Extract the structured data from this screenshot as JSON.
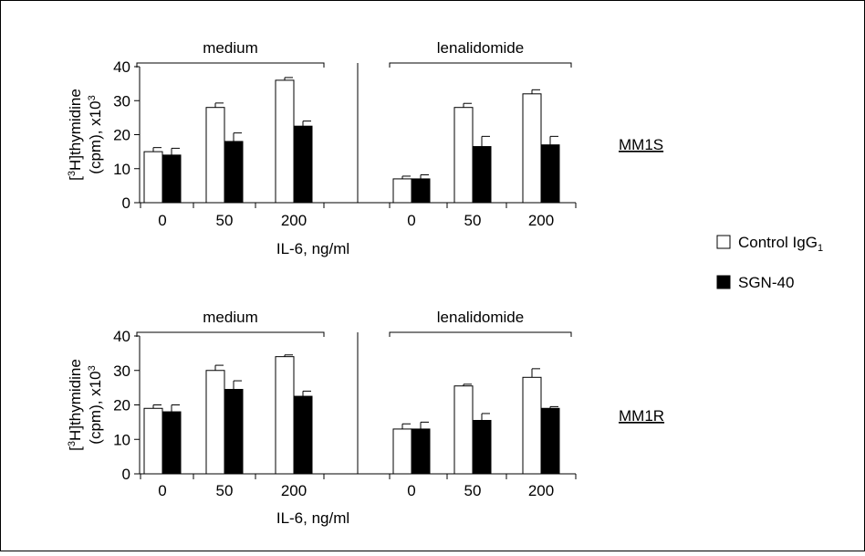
{
  "legend": {
    "control_label": "Control IgG",
    "control_subscript": "1",
    "sgn_label": "SGN-40"
  },
  "chart_data": [
    {
      "type": "bar",
      "panel_label": "MM1S",
      "ylabel_line1_pre": "[",
      "ylabel_line1_sup": "3",
      "ylabel_line1_post": "H]thymidine",
      "ylabel_line2_pre": "(cpm), x10",
      "ylabel_line2_sup": "3",
      "xlabel": "IL-6, ng/ml",
      "ylim": [
        0,
        40
      ],
      "yticks": [
        "0",
        "10",
        "20",
        "30",
        "40"
      ],
      "groups": [
        "medium",
        "lenalidomide"
      ],
      "categories": [
        "0",
        "50",
        "200"
      ],
      "series": [
        {
          "name": "Control IgG1",
          "color": "#ffffff",
          "values": [
            [
              15,
              28,
              36
            ],
            [
              7,
              28,
              32
            ]
          ],
          "errors": [
            [
              1.2,
              1.3,
              0.8
            ],
            [
              0.8,
              1.2,
              1.2
            ]
          ]
        },
        {
          "name": "SGN-40",
          "color": "#000000",
          "values": [
            [
              14,
              18,
              22.5
            ],
            [
              7,
              16.5,
              17
            ]
          ],
          "errors": [
            [
              2.0,
              2.5,
              1.5
            ],
            [
              1.2,
              3.0,
              2.5
            ]
          ]
        }
      ]
    },
    {
      "type": "bar",
      "panel_label": "MM1R",
      "ylabel_line1_pre": "[",
      "ylabel_line1_sup": "3",
      "ylabel_line1_post": "H]thymidine",
      "ylabel_line2_pre": "(cpm), x10",
      "ylabel_line2_sup": "3",
      "xlabel": "IL-6, ng/ml",
      "ylim": [
        0,
        40
      ],
      "yticks": [
        "0",
        "10",
        "20",
        "30",
        "40"
      ],
      "groups": [
        "medium",
        "lenalidomide"
      ],
      "categories": [
        "0",
        "50",
        "200"
      ],
      "series": [
        {
          "name": "Control IgG1",
          "color": "#ffffff",
          "values": [
            [
              19,
              30,
              34
            ],
            [
              13,
              25.5,
              28
            ]
          ],
          "errors": [
            [
              1.0,
              1.5,
              0.5
            ],
            [
              1.5,
              0.5,
              2.5
            ]
          ]
        },
        {
          "name": "SGN-40",
          "color": "#000000",
          "values": [
            [
              18,
              24.5,
              22.5
            ],
            [
              13,
              15.5,
              19
            ]
          ],
          "errors": [
            [
              2.0,
              2.5,
              1.5
            ],
            [
              2.0,
              2.0,
              0.5
            ]
          ]
        }
      ]
    }
  ]
}
